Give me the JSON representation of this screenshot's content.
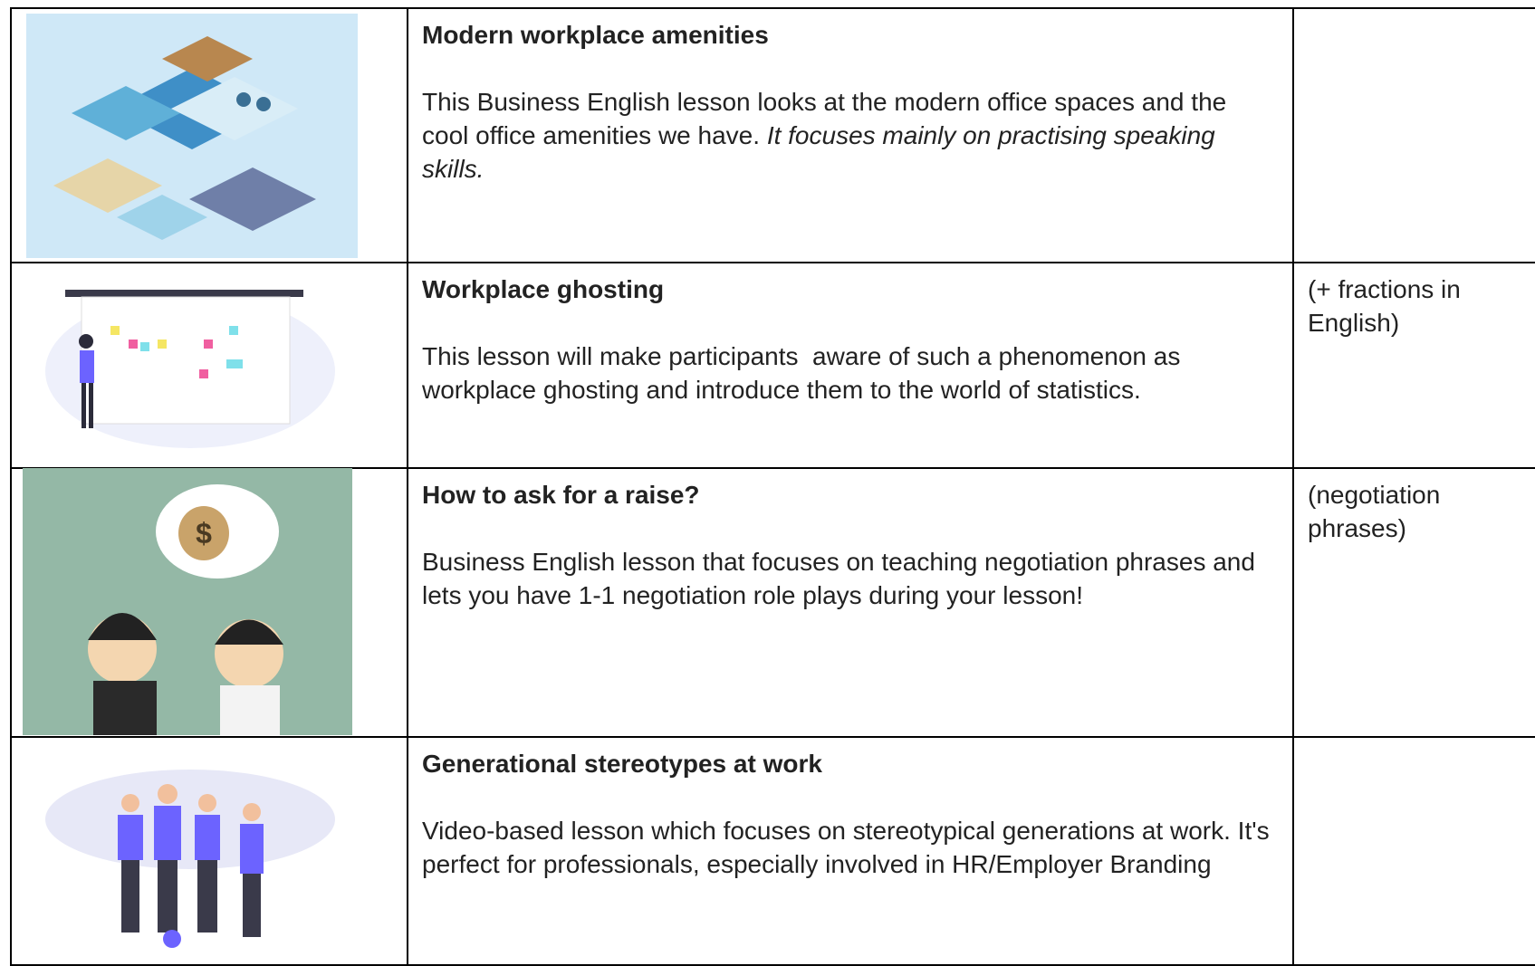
{
  "table": {
    "rows": [
      {
        "title": "Modern workplace amenities",
        "description": "This Business English lesson looks at the modern office spaces and the cool office amenities we have. ",
        "description_italic": "It focuses mainly on practising speaking skills."
      },
      {
        "title": "Workplace ghosting",
        "description": "This lesson will make participants  aware of such a phenomenon as workplace ghosting and introduce them to the world of statistics.",
        "note": "(+ fractions in English)"
      },
      {
        "title": "How to ask for a raise?",
        "description": "Business English lesson that focuses on teaching negotiation phrases and lets you have 1-1 negotiation role plays during your lesson!",
        "note": "(negotiation phrases)"
      },
      {
        "title": "Generational stereotypes at work",
        "description": "Video-based lesson which focuses on stereotypical generations at work. It's perfect for professionals, especially involved in HR/Employer Branding"
      }
    ]
  }
}
